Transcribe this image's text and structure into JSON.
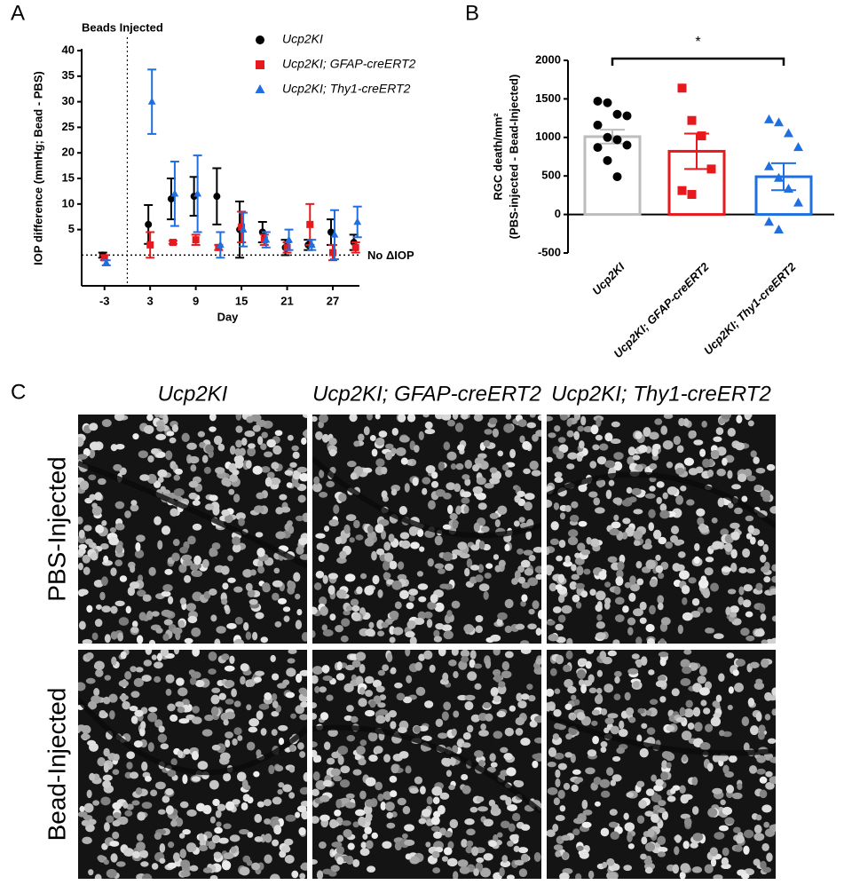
{
  "panel_labels": [
    "A",
    "B",
    "C"
  ],
  "chart_data": [
    {
      "type": "scatter",
      "x_label": "Day",
      "y_label": "IOP difference (mmHg; Bead - PBS)",
      "annotations": [
        "Beads Injected",
        "No ΔIOP"
      ],
      "x": [
        -3,
        3,
        6,
        9,
        12,
        15,
        18,
        21,
        24,
        27,
        30
      ],
      "xlim": [
        -6,
        30.5
      ],
      "xticks": [
        -3,
        3,
        9,
        15,
        21,
        27
      ],
      "ylim": [
        -6,
        40
      ],
      "yticks": [
        5,
        10,
        15,
        20,
        25,
        30,
        35,
        40
      ],
      "series": [
        {
          "name": "Ucp2KI",
          "color": "#000000",
          "marker": "circle",
          "values": [
            0,
            6,
            11,
            11.5,
            11.5,
            5,
            4.5,
            1.5,
            2,
            4.5,
            2.5
          ],
          "errors": [
            0.5,
            3.8,
            4,
            3.8,
            5.5,
            5.5,
            2,
            1.5,
            1,
            2.5,
            1.5
          ]
        },
        {
          "name": "Ucp2KI; GFAP-creERT2",
          "color": "#e8191c",
          "marker": "square",
          "values": [
            -0.5,
            2,
            2.5,
            3,
            1.5,
            5.5,
            3,
            1.5,
            6,
            0.5,
            1.5
          ],
          "errors": [
            0.5,
            2.5,
            0.3,
            1,
            0.5,
            3,
            1,
            1,
            4,
            1.5,
            1
          ]
        },
        {
          "name": "Ucp2KI; Thy1-creERT2",
          "color": "#1f6fe0",
          "marker": "triangle",
          "values": [
            -1.5,
            30,
            12,
            12,
            2,
            5,
            3,
            3,
            2,
            4,
            6.5
          ],
          "errors": [
            0.5,
            6.3,
            6.3,
            7.5,
            2.5,
            3.3,
            1.5,
            2,
            1,
            4.8,
            3
          ]
        }
      ]
    },
    {
      "type": "bar",
      "y_label": [
        "RGC death/mm²",
        "(PBS-injected - Bead-Injected)"
      ],
      "categories": [
        "Ucp2KI",
        "Ucp2KI; GFAP-creERT2",
        "Ucp2KI; Thy1-creERT2"
      ],
      "colors": [
        "#bdbdbd",
        "#e8191c",
        "#1f6fe0"
      ],
      "markers": [
        "circle",
        "square",
        "triangle"
      ],
      "values": [
        1010,
        820,
        490
      ],
      "errors": [
        90,
        230,
        175
      ],
      "points": [
        [
          1470,
          1450,
          1300,
          1280,
          1160,
          1000,
          970,
          900,
          870,
          700,
          490
        ],
        [
          1640,
          1220,
          1020,
          590,
          310,
          260
        ],
        [
          1230,
          1190,
          1050,
          870,
          620,
          470,
          330,
          150,
          -100,
          -200
        ]
      ],
      "ylim": [
        -500,
        2000
      ],
      "yticks": [
        -500,
        0,
        500,
        1000,
        1500,
        2000
      ],
      "significance": "*"
    }
  ],
  "micrographs": {
    "columns": [
      "Ucp2KI",
      "Ucp2KI; GFAP-creERT2",
      "Ucp2KI; Thy1-creERT2"
    ],
    "rows": [
      "PBS-Injected",
      "Bead-Injected"
    ]
  }
}
